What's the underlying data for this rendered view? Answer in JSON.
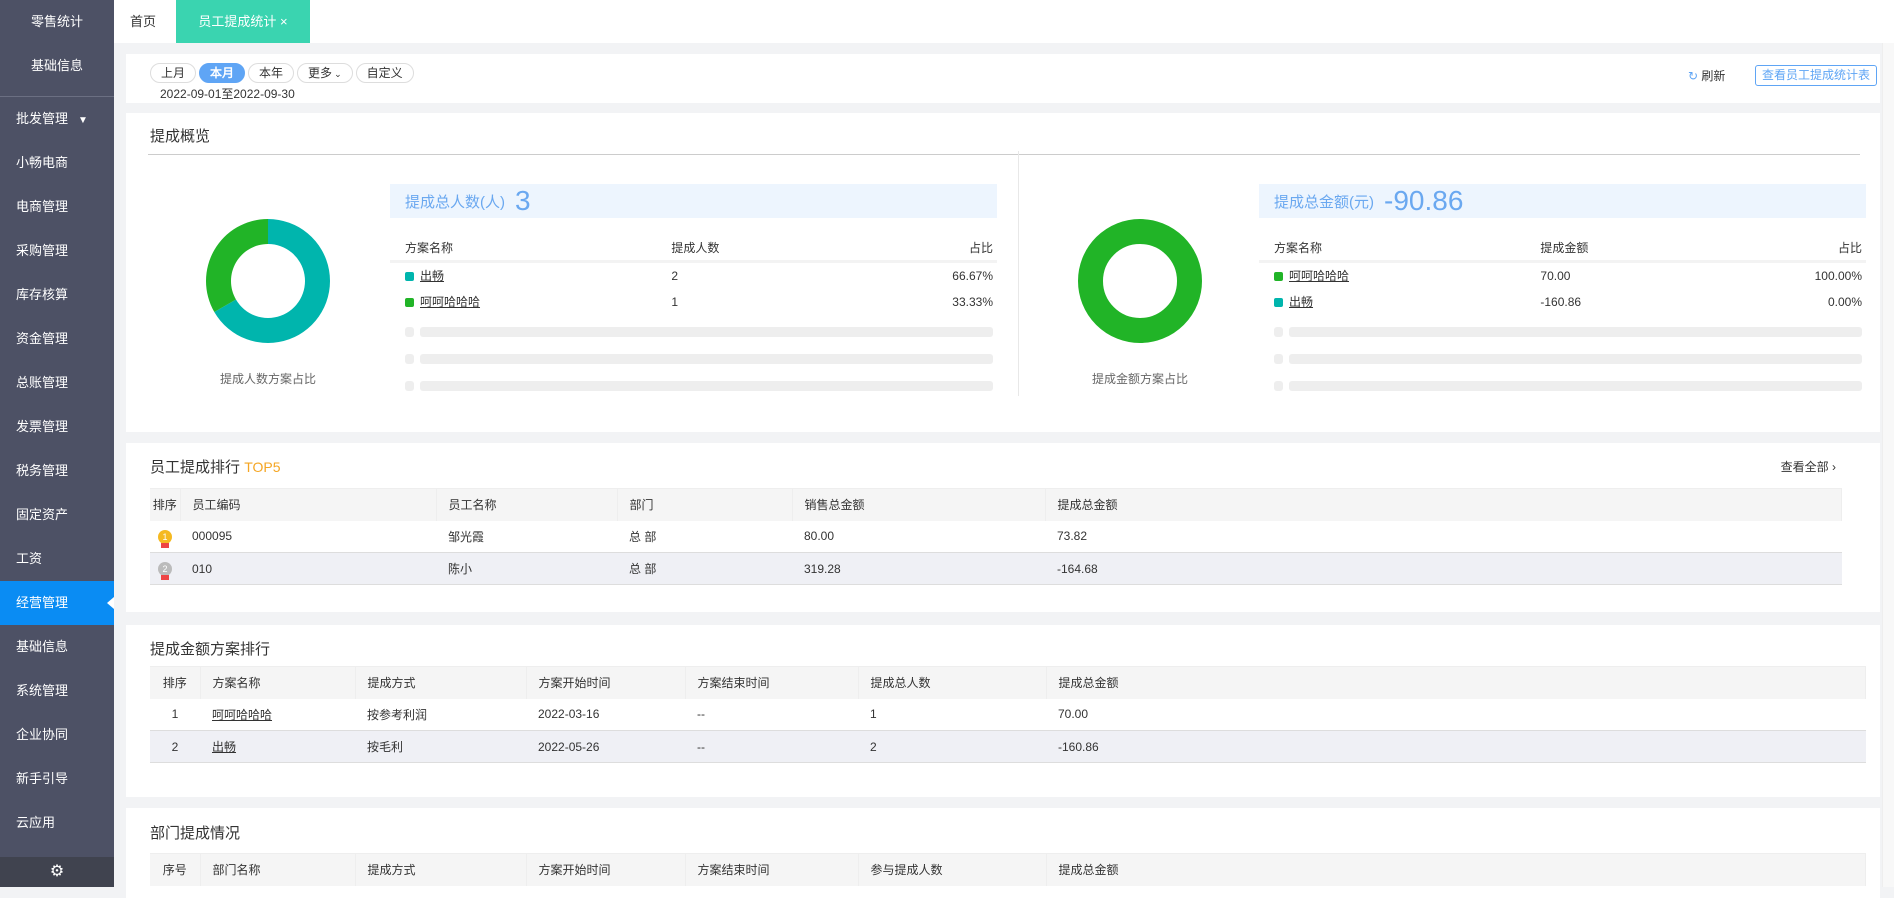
{
  "sidebar": {
    "top_items": [
      "零售统计",
      "基础信息"
    ],
    "items": [
      "批发管理",
      "小畅电商",
      "电商管理",
      "采购管理",
      "库存核算",
      "资金管理",
      "总账管理",
      "发票管理",
      "税务管理",
      "固定资产",
      "工资",
      "经营管理",
      "基础信息",
      "系统管理",
      "企业协同",
      "新手引导",
      "云应用"
    ],
    "active": "经营管理",
    "gear_icon": "gear-icon"
  },
  "tabs": {
    "home": "首页",
    "active": "员工提成统计",
    "close": "×"
  },
  "filter": {
    "pills": [
      "上月",
      "本月",
      "本年",
      "更多",
      "自定义"
    ],
    "selected": "本月",
    "date_range": "2022-09-01至2022-09-30",
    "refresh": "刷新",
    "view_report": "查看员工提成统计表"
  },
  "overview": {
    "title": "提成概览",
    "people": {
      "label": "提成总人数(人)",
      "total": "3",
      "headers": [
        "方案名称",
        "提成人数",
        "占比"
      ],
      "rows": [
        {
          "name": "出畅",
          "value": "2",
          "pct": "66.67%",
          "color": "#00b5ad"
        },
        {
          "name": "呵呵哈哈哈",
          "value": "1",
          "pct": "33.33%",
          "color": "#21b427"
        }
      ],
      "caption": "提成人数方案占比"
    },
    "amount": {
      "label": "提成总金额(元)",
      "total": "-90.86",
      "headers": [
        "方案名称",
        "提成金额",
        "占比"
      ],
      "rows": [
        {
          "name": "呵呵哈哈哈",
          "value": "70.00",
          "pct": "100.00%",
          "color": "#21b427"
        },
        {
          "name": "出畅",
          "value": "-160.86",
          "pct": "0.00%",
          "color": "#00b5ad"
        }
      ],
      "caption": "提成金额方案占比"
    }
  },
  "ranking": {
    "title": "员工提成排行",
    "badge": "TOP5",
    "view_all": "查看全部",
    "headers": [
      "排序",
      "员工编码",
      "员工名称",
      "部门",
      "销售总金额",
      "提成总金额"
    ],
    "rows": [
      {
        "rank": "1",
        "code": "000095",
        "name": "邹光霞",
        "dept": "总 部",
        "sales": "80.00",
        "commission": "73.82"
      },
      {
        "rank": "2",
        "code": "010",
        "name": "陈小",
        "dept": "总 部",
        "sales": "319.28",
        "commission": "-164.68"
      }
    ]
  },
  "schemes": {
    "title": "提成金额方案排行",
    "headers": [
      "排序",
      "方案名称",
      "提成方式",
      "方案开始时间",
      "方案结束时间",
      "提成总人数",
      "提成总金额"
    ],
    "rows": [
      [
        "1",
        "呵呵哈哈哈",
        "按参考利润",
        "2022-03-16",
        "--",
        "1",
        "70.00"
      ],
      [
        "2",
        "出畅",
        "按毛利",
        "2022-05-26",
        "--",
        "2",
        "-160.86"
      ]
    ]
  },
  "dept": {
    "title": "部门提成情况",
    "headers": [
      "序号",
      "部门名称",
      "提成方式",
      "方案开始时间",
      "方案结束时间",
      "参与提成人数",
      "提成总金额"
    ]
  }
}
